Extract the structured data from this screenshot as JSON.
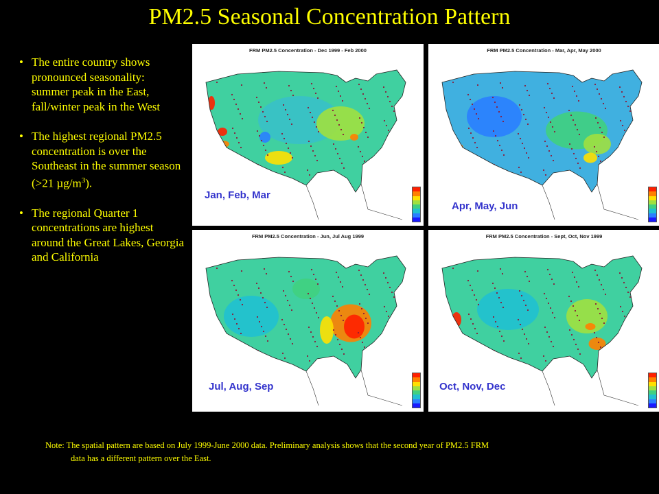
{
  "title": "PM2.5 Seasonal Concentration Pattern",
  "bullets": [
    {
      "text": "The entire country shows pronounced seasonality: summer peak in the East, fall/winter  peak in the West"
    },
    {
      "text_before": "The highest regional PM2.5 concentration is over the Southeast in the summer season (>21 µg/m",
      "superscript": "3",
      "text_after": ")."
    },
    {
      "text": "The regional Quarter 1 concentrations are highest around the Great Lakes, Georgia and California"
    }
  ],
  "maps": [
    {
      "map_title": "FRM PM2.5 Concentration - Dec 1999 - Feb 2000",
      "season_label": "Jan, Feb, Mar",
      "pattern": "winter"
    },
    {
      "map_title": "FRM PM2.5 Concentration - Mar, Apr, May 2000",
      "season_label": "Apr, May, Jun",
      "pattern": "spring"
    },
    {
      "map_title": "FRM PM2.5 Concentration - Jun, Jul Aug 1999",
      "season_label": "Jul, Aug, Sep",
      "pattern": "summer"
    },
    {
      "map_title": "FRM PM2.5 Concentration - Sept, Oct, Nov 1999",
      "season_label": "Oct, Nov, Dec",
      "pattern": "fall"
    }
  ],
  "note": {
    "line1": "Note: The spatial pattern are based on July 1999-June 2000 data. Preliminary analysis shows that the second year of PM2.5 FRM",
    "line2": "data has a different pattern over the East."
  },
  "colors": {
    "title": "#ffff00",
    "background": "#000000",
    "season_label": "#3333cc",
    "colorbar": [
      "#1a1aff",
      "#2a7fff",
      "#20c0d0",
      "#40d080",
      "#a0e040",
      "#ffe000",
      "#ff8000",
      "#ff2000"
    ]
  }
}
